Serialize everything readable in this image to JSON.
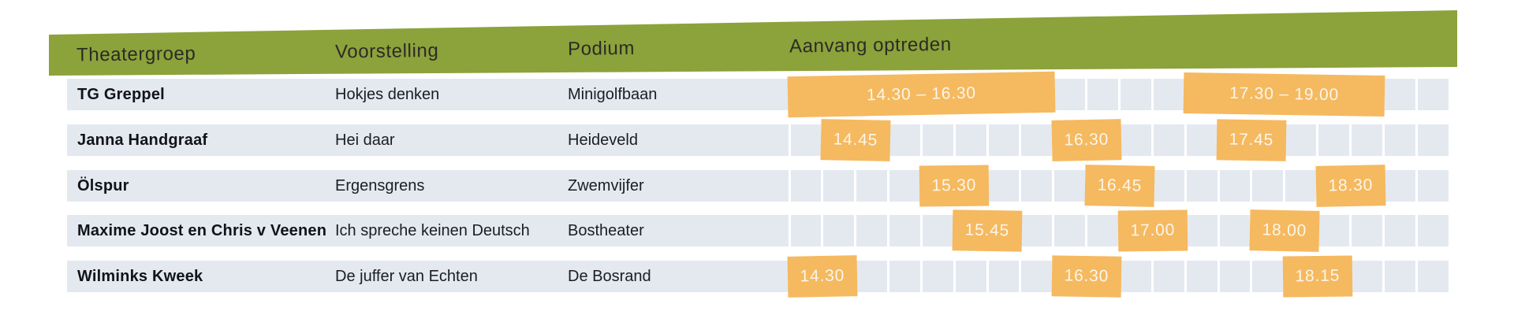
{
  "chart_data": {
    "type": "table",
    "columns": [
      "Theatergroep",
      "Voorstelling",
      "Podium",
      "Aanvang optreden"
    ],
    "rows": [
      {
        "theatergroep": "TG Greppel",
        "voorstelling": "Hokjes denken",
        "podium": "Minigolfbaan",
        "aanvang": [
          "14.30 – 16.30",
          "17.30 – 19.00"
        ]
      },
      {
        "theatergroep": "Janna Handgraaf",
        "voorstelling": "Hei daar",
        "podium": "Heideveld",
        "aanvang": [
          "14.45",
          "16.30",
          "17.45"
        ]
      },
      {
        "theatergroep": "Ölspur",
        "voorstelling": "Ergensgrens",
        "podium": "Zwemvijfer",
        "aanvang": [
          "15.30",
          "16.45",
          "18.30"
        ]
      },
      {
        "theatergroep": "Maxime Joost en Chris v Veenen",
        "voorstelling": "Ich spreche keinen Deutsch",
        "podium": "Bostheater",
        "aanvang": [
          "15.45",
          "17.00",
          "18.00"
        ]
      },
      {
        "theatergroep": "Wilminks Kweek",
        "voorstelling": "De juffer van Echten",
        "podium": "De Bosrand",
        "aanvang": [
          "14.30",
          "16.30",
          "18.15"
        ]
      }
    ],
    "timeline": {
      "grid_start_time": "14.30",
      "slot_minutes": 15,
      "slot_count": 20,
      "single_time_block_minutes": 30,
      "gridlines": true
    }
  },
  "colors": {
    "header_green": "#8CA23B",
    "row_background": "#E4E9F0",
    "block_orange": "#F5B960",
    "block_text": "#FBF6EA",
    "header_text": "#2B2B25",
    "body_text": "#1C1C24"
  }
}
